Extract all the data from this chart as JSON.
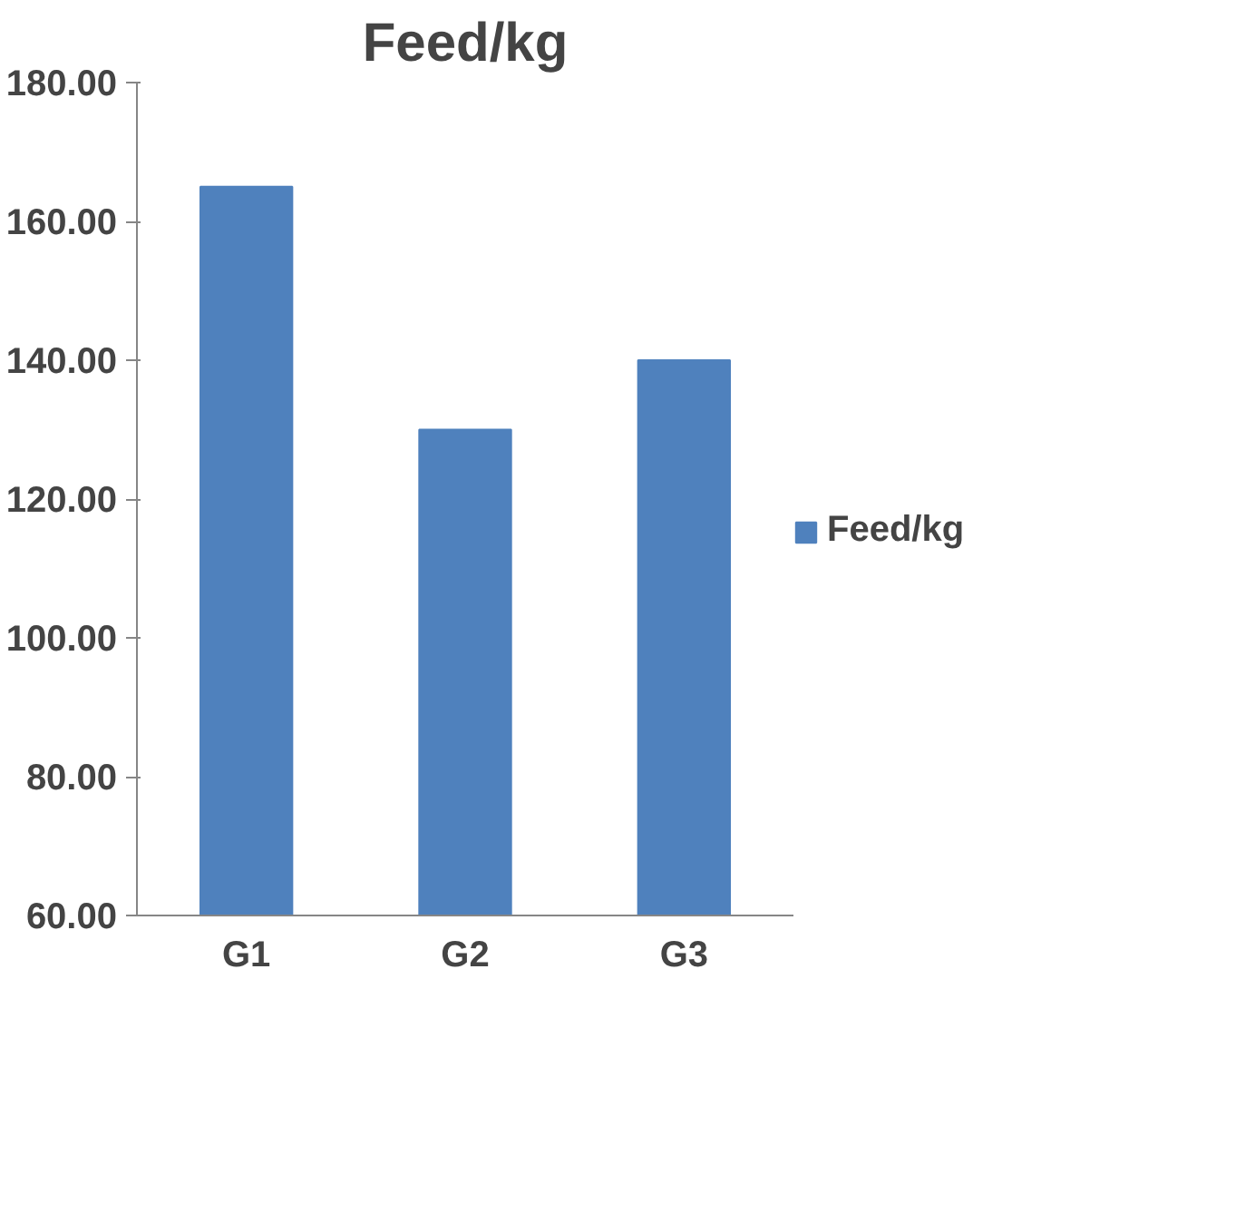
{
  "chart_data": {
    "type": "bar",
    "title": "Feed/kg",
    "categories": [
      "G1",
      "G2",
      "G3"
    ],
    "series": [
      {
        "name": "Feed/kg",
        "color": "#4f81bd",
        "values": [
          165,
          130,
          140
        ]
      }
    ],
    "ylim": [
      60,
      180
    ],
    "yticks": [
      {
        "value": 60,
        "label": "60.00"
      },
      {
        "value": 80,
        "label": "80.00"
      },
      {
        "value": 100,
        "label": "100.00"
      },
      {
        "value": 120,
        "label": "120.00"
      },
      {
        "value": 140,
        "label": "140.00"
      },
      {
        "value": 160,
        "label": "160.00"
      },
      {
        "value": 180,
        "label": "180.00"
      }
    ],
    "grid": false,
    "legend": "right"
  }
}
